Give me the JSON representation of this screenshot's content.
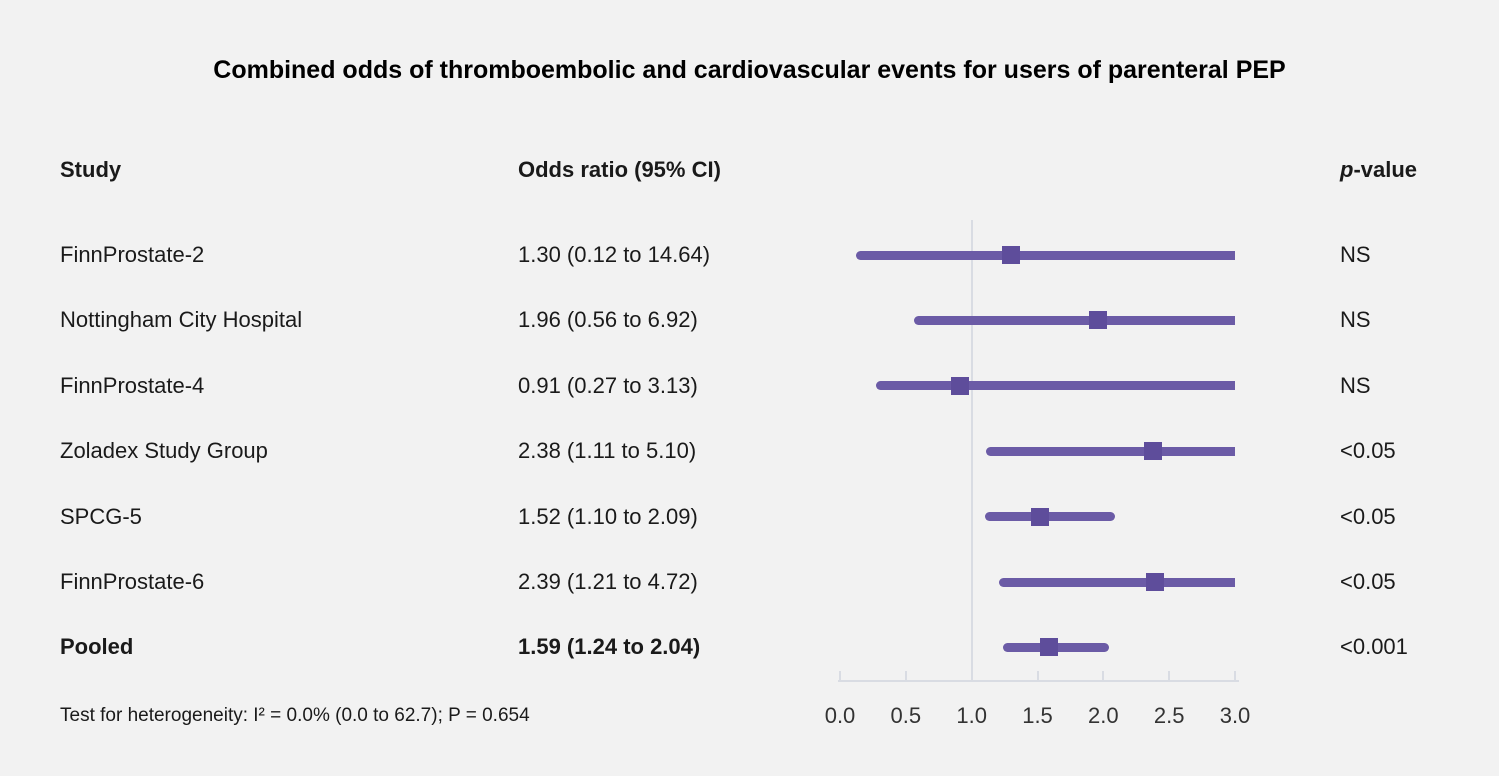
{
  "title": "Combined odds of thromboembolic and cardiovascular events for users of parenteral PEP",
  "columns": {
    "study": "Study",
    "odds_ratio": "Odds ratio (95% CI)",
    "p_italic": "p",
    "p_rest": "-value"
  },
  "footer": "Test for heterogeneity: I² = 0.0% (0.0 to 62.7); P = 0.654",
  "chart_data": {
    "type": "forest",
    "title": "Combined odds of thromboembolic and cardiovascular events for users of parenteral PEP",
    "xlabel": "Odds ratio",
    "axis": {
      "min": 0.0,
      "max": 3.0,
      "ticks": [
        "0.0",
        "0.5",
        "1.0",
        "1.5",
        "2.0",
        "2.5",
        "3.0"
      ],
      "tick_values": [
        0.0,
        0.5,
        1.0,
        1.5,
        2.0,
        2.5,
        3.0
      ],
      "reference_line": 1.0,
      "grid": false
    },
    "colors": {
      "line": "#6b5ba6",
      "marker": "#5e4d9b",
      "axis": "#d9dce3",
      "background": "#f2f2f2"
    },
    "rows": [
      {
        "study": "FinnProstate-2",
        "or_text": "1.30 (0.12 to 14.64)",
        "or": 1.3,
        "lo": 0.12,
        "hi": 14.64,
        "p": "NS",
        "bold": false
      },
      {
        "study": "Nottingham City Hospital",
        "or_text": "1.96 (0.56 to 6.92)",
        "or": 1.96,
        "lo": 0.56,
        "hi": 6.92,
        "p": "NS",
        "bold": false
      },
      {
        "study": "FinnProstate-4",
        "or_text": "0.91 (0.27 to 3.13)",
        "or": 0.91,
        "lo": 0.27,
        "hi": 3.13,
        "p": "NS",
        "bold": false
      },
      {
        "study": "Zoladex Study Group",
        "or_text": "2.38 (1.11 to 5.10)",
        "or": 2.38,
        "lo": 1.11,
        "hi": 5.1,
        "p": "<0.05",
        "bold": false
      },
      {
        "study": "SPCG-5",
        "or_text": "1.52 (1.10 to 2.09)",
        "or": 1.52,
        "lo": 1.1,
        "hi": 2.09,
        "p": "<0.05",
        "bold": false
      },
      {
        "study": "FinnProstate-6",
        "or_text": "2.39 (1.21 to 4.72)",
        "or": 2.39,
        "lo": 1.21,
        "hi": 4.72,
        "p": "<0.05",
        "bold": false
      },
      {
        "study": "Pooled",
        "or_text": "1.59 (1.24 to 2.04)",
        "or": 1.59,
        "lo": 1.24,
        "hi": 2.04,
        "p": "<0.001",
        "bold": true
      }
    ]
  }
}
